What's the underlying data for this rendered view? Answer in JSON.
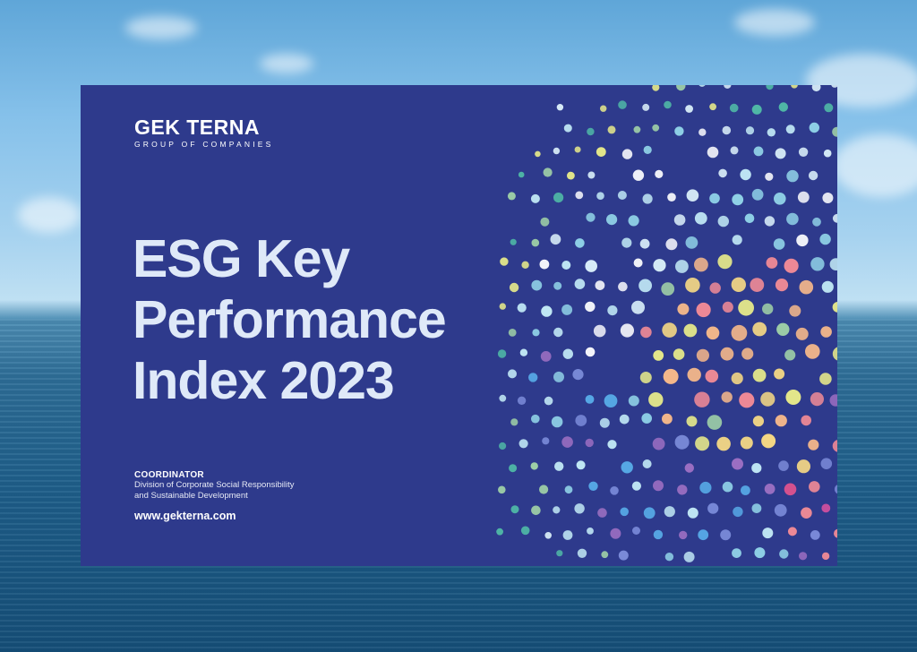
{
  "brand": {
    "name": "GEK TERNA",
    "tagline": "GROUP OF COMPANIES"
  },
  "title": {
    "line1": "ESG Key",
    "line2": "Performance",
    "line3": "Index 2023"
  },
  "coordinator": {
    "label": "COORDINATOR",
    "line1": "Division of Corporate Social Responsibility",
    "line2": "and Sustainable Development"
  },
  "website": "www.gekterna.com",
  "colors": {
    "card_background": "#2e3a8c",
    "title_text": "#dfe9f8",
    "dot_palette": [
      "#f6f7fb",
      "#d9eef9",
      "#bfe6f4",
      "#8fd0e6",
      "#57a9e6",
      "#7a8ad8",
      "#9c6fc2",
      "#d1509f",
      "#e8548f",
      "#f08a96",
      "#f7b98a",
      "#f3d684",
      "#e6e98a",
      "#9fd0a7",
      "#4fb7a6"
    ]
  }
}
